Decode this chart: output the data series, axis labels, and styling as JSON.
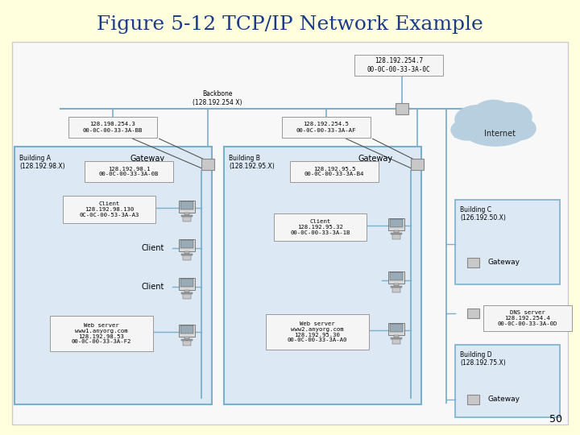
{
  "title": "Figure 5-12 TCP/IP Network Example",
  "title_color": "#1a3a8a",
  "title_fontsize": 18,
  "bg_color": "#ffffdd",
  "page_number": "50",
  "backbone_label": "Backbone\n(128.192.254 X)",
  "internet_label": "Internet",
  "building_a": {
    "label": "Building A\n(128.192.98.X)",
    "gateway_label": "Gateway",
    "hub_ip": "128.192.98.1\n00-0C-00-33-3A-0B",
    "client1_label": "Client\n128.192.98.130\n0C-0C-00-53-3A-A3",
    "client2_label": "Client",
    "client3_label": "Client",
    "web_server_label": "Web server\nwww1.anyorg.com\n128.192.98.53\n00-0C-00-33-3A-F2",
    "gw_ip": "128.198.254.3\n00-0C-00-33-3A-BB"
  },
  "building_b": {
    "label": "Building B\n(128.192.95.X)",
    "gateway_label": "Gateway",
    "hub_ip": "128.192.95.5\n00-0C-00-33-3A-B4",
    "client1_label": "Client\n128.192.95.32\n00-0C-00-33-3A-1B",
    "web_server_label": "Web server\nwww2.anyorg.com\n128.192.95.30\n00-0C-00-33-3A-A0",
    "gw_ip": "128.192.254.5\n00-0C-00-33-3A-AF"
  },
  "building_c": {
    "label": "Building C\n(126.192.50.X)",
    "gateway_label": "Gateway"
  },
  "building_d": {
    "label": "Building D\n(128.192.75.X)",
    "gateway_label": "Gateway"
  },
  "dns_server": {
    "label": "DNS server\n128.192.254.4\n00-0C-00-33-3A-0D"
  },
  "backbone_router_ip": "128.192.254.7\n00-0C-00-33-3A-0C",
  "box_fill": "#dce9f5",
  "box_edge": "#7ab0cc",
  "label_fill": "#f5f5f5",
  "label_edge": "#999999",
  "gw_fill": "#c8c8c8",
  "gw_edge": "#888888",
  "line_color": "#7ab0cc",
  "cloud_color": "#b8cfe0"
}
